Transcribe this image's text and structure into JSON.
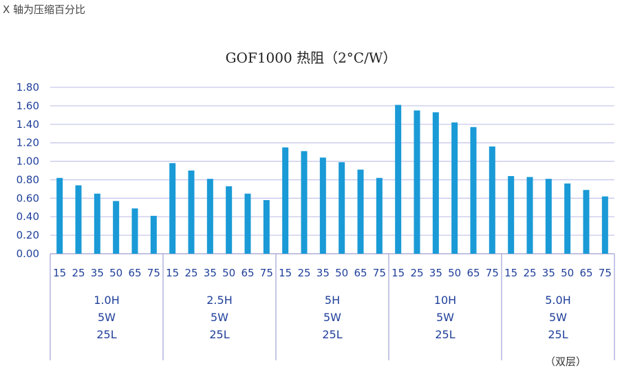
{
  "note_text": "X 轴为压缩百分比",
  "footnote": "（双层）",
  "chart_data": {
    "type": "bar",
    "title": "GOF1000 热阻（2°C/W）",
    "xlabel": "",
    "ylabel": "",
    "ylim": [
      0,
      1.8
    ],
    "yticks": [
      "0.00",
      "0.20",
      "0.40",
      "0.60",
      "0.80",
      "1.00",
      "1.20",
      "1.40",
      "1.60",
      "1.80"
    ],
    "grid": true,
    "bar_color": "#1a9ad6",
    "groups": [
      {
        "labels": [
          "1.0H",
          "5W",
          "25L"
        ],
        "categories": [
          "15",
          "25",
          "35",
          "50",
          "65",
          "75"
        ],
        "values": [
          0.82,
          0.74,
          0.65,
          0.57,
          0.49,
          0.41
        ]
      },
      {
        "labels": [
          "2.5H",
          "5W",
          "25L"
        ],
        "categories": [
          "15",
          "25",
          "35",
          "50",
          "65",
          "75"
        ],
        "values": [
          0.98,
          0.9,
          0.81,
          0.73,
          0.65,
          0.58
        ]
      },
      {
        "labels": [
          "5H",
          "5W",
          "25L"
        ],
        "categories": [
          "15",
          "25",
          "35",
          "50",
          "65",
          "75"
        ],
        "values": [
          1.15,
          1.11,
          1.04,
          0.99,
          0.91,
          0.82
        ]
      },
      {
        "labels": [
          "10H",
          "5W",
          "25L"
        ],
        "categories": [
          "15",
          "25",
          "35",
          "50",
          "65",
          "75"
        ],
        "values": [
          1.61,
          1.55,
          1.53,
          1.42,
          1.37,
          1.16
        ]
      },
      {
        "labels": [
          "5.0H",
          "5W",
          "25L"
        ],
        "categories": [
          "15",
          "25",
          "35",
          "50",
          "65",
          "75"
        ],
        "values": [
          0.84,
          0.83,
          0.81,
          0.76,
          0.69,
          0.62
        ]
      }
    ]
  }
}
